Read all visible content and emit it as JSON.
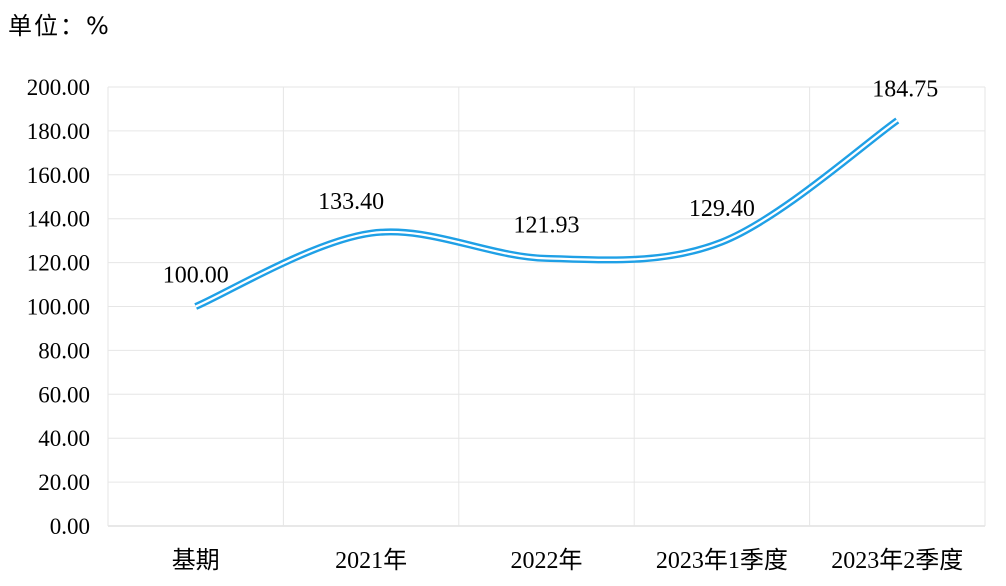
{
  "unit_label": "单位：%",
  "chart_data": {
    "type": "line",
    "categories": [
      "基期",
      "2021年",
      "2022年",
      "2023年1季度",
      "2023年2季度"
    ],
    "values": [
      100.0,
      133.4,
      121.93,
      129.4,
      184.75
    ],
    "data_labels": [
      "100.00",
      "133.40",
      "121.93",
      "129.40",
      "184.75"
    ],
    "y_ticks": [
      "0.00",
      "20.00",
      "40.00",
      "60.00",
      "80.00",
      "100.00",
      "120.00",
      "140.00",
      "160.00",
      "180.00",
      "200.00"
    ],
    "ylim": [
      0,
      200
    ],
    "grid": true,
    "smooth": true,
    "line_color": "#1fa0e6",
    "title": "",
    "xlabel": "",
    "ylabel": ""
  }
}
